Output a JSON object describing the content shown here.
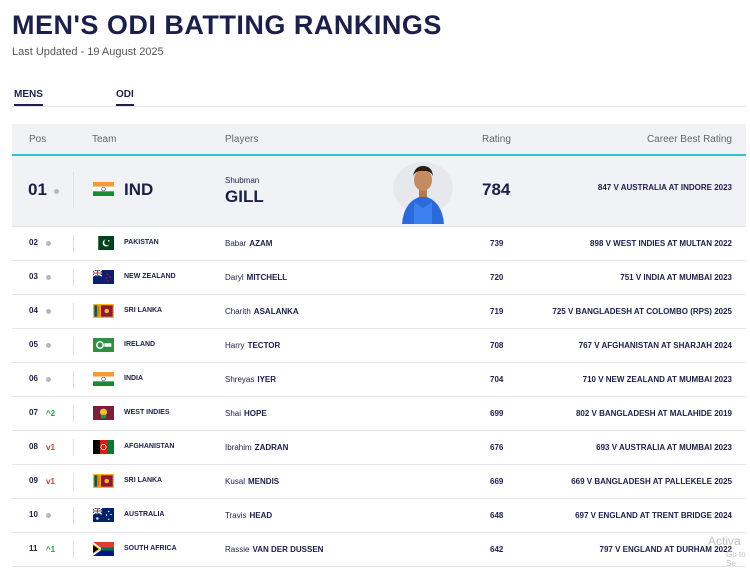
{
  "page": {
    "title": "MEN'S ODI BATTING RANKINGS",
    "last_updated": "Last Updated - 19 August 2025"
  },
  "tabs": [
    {
      "label": "MENS",
      "active": true
    },
    {
      "label": "ODI",
      "active": true
    }
  ],
  "table": {
    "headers": {
      "pos": "Pos",
      "team": "Team",
      "players": "Players",
      "rating": "Rating",
      "career_best": "Career Best Rating"
    },
    "top": {
      "pos": "01",
      "movement": "",
      "team": "IND",
      "flag": "india-flag-icon",
      "first_name": "Shubman",
      "last_name": "GILL",
      "rating": "784",
      "career_best": "847 V AUSTRALIA AT INDORE 2023"
    },
    "rows": [
      {
        "pos": "02",
        "move": "",
        "team": "PAKISTAN",
        "first": "Babar",
        "last": "AZAM",
        "rating": "739",
        "best": "898 V WEST INDIES AT MULTAN 2022"
      },
      {
        "pos": "03",
        "move": "",
        "team": "NEW ZEALAND",
        "first": "Daryl",
        "last": "MITCHELL",
        "rating": "720",
        "best": "751 V INDIA AT MUMBAI 2023"
      },
      {
        "pos": "04",
        "move": "",
        "team": "SRI LANKA",
        "first": "Charith",
        "last": "ASALANKA",
        "rating": "719",
        "best": "725 V BANGLADESH AT COLOMBO (RPS) 2025"
      },
      {
        "pos": "05",
        "move": "",
        "team": "IRELAND",
        "first": "Harry",
        "last": "TECTOR",
        "rating": "708",
        "best": "767 V AFGHANISTAN AT SHARJAH 2024"
      },
      {
        "pos": "06",
        "move": "",
        "team": "INDIA",
        "first": "Shreyas",
        "last": "IYER",
        "rating": "704",
        "best": "710 V NEW ZEALAND AT MUMBAI 2023"
      },
      {
        "pos": "07",
        "move": "2",
        "team": "WEST INDIES",
        "first": "Shai",
        "last": "HOPE",
        "rating": "699",
        "best": "802 V BANGLADESH AT MALAHIDE 2019"
      },
      {
        "pos": "08",
        "move": "1",
        "team": "AFGHANISTAN",
        "first": "Ibrahim",
        "last": "ZADRAN",
        "rating": "676",
        "best": "693 V AUSTRALIA AT MUMBAI 2023"
      },
      {
        "pos": "09",
        "move": "1",
        "team": "SRI LANKA",
        "first": "Kusal",
        "last": "MENDIS",
        "rating": "669",
        "best": "669 V BANGLADESH AT PALLEKELE 2025"
      },
      {
        "pos": "10",
        "move": "",
        "team": "AUSTRALIA",
        "first": "Travis",
        "last": "HEAD",
        "rating": "648",
        "best": "697 V ENGLAND AT TRENT BRIDGE 2024"
      },
      {
        "pos": "11",
        "move": "1",
        "team": "SOUTH AFRICA",
        "first": "Rassie",
        "last": "VAN DER DUSSEN",
        "rating": "642",
        "best": "797 V ENGLAND AT DURHAM 2022"
      }
    ]
  },
  "watermark": {
    "line1": "Activa",
    "line2": "Go to Se"
  }
}
